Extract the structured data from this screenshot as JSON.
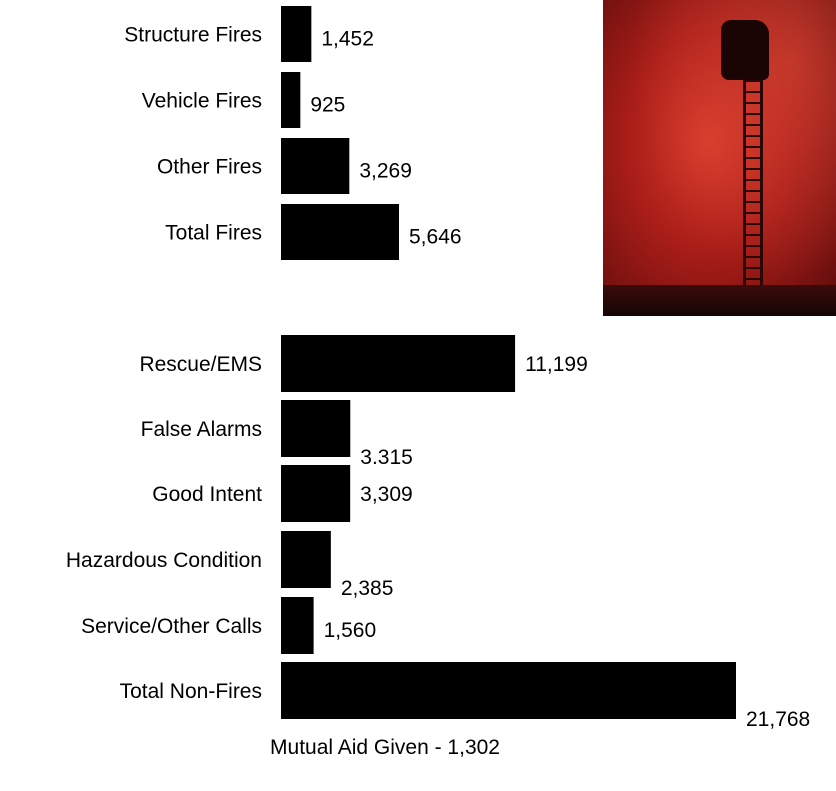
{
  "chart_data": [
    {
      "type": "bar",
      "orientation": "horizontal",
      "categories": [
        "Structure Fires",
        "Vehicle Fires",
        "Other Fires",
        "Total Fires"
      ],
      "values": [
        1452,
        925,
        3269,
        5646
      ],
      "value_labels": [
        "1,452",
        "925",
        "3,269",
        "5,646"
      ],
      "bar_color": "#000000"
    },
    {
      "type": "bar",
      "orientation": "horizontal",
      "categories": [
        "Rescue/EMS",
        "False Alarms",
        "Good Intent",
        "Hazardous Condition",
        "Service/Other Calls",
        "Total Non-Fires"
      ],
      "values": [
        11199,
        3315,
        3309,
        2385,
        1560,
        21768
      ],
      "value_labels": [
        "11,199",
        "3.315",
        "3,309",
        "2,385",
        "1,560",
        "21,768"
      ],
      "bar_color": "#000000"
    }
  ],
  "footnote": "Mutual Aid Given - 1,302"
}
